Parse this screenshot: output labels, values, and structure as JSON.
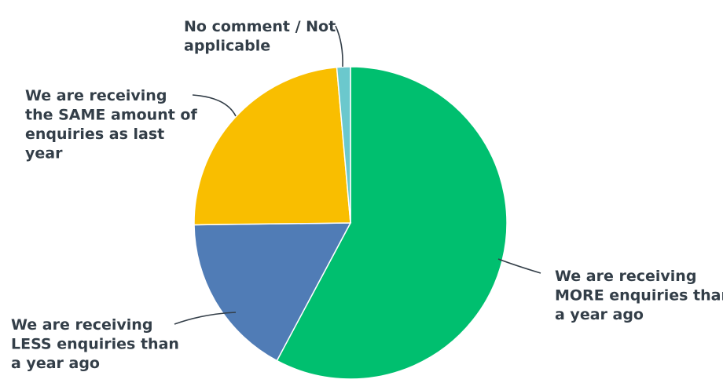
{
  "chart_data": {
    "type": "pie",
    "start_angle_deg": 0,
    "direction": "clockwise",
    "series": [
      {
        "categories": [
          "We are receiving MORE enquiries than a year ago",
          "We are receiving LESS enquiries than a year ago",
          "We are receiving the SAME amount of enquiries as last year",
          "No comment / Not applicable"
        ],
        "values": [
          57.8,
          17.0,
          23.8,
          1.4
        ],
        "unit": "%",
        "colors": [
          "#00bf6f",
          "#507cb6",
          "#f9be00",
          "#6bc8cd"
        ]
      }
    ],
    "slice_labels": [
      [
        "We are receiving",
        "MORE enquiries than",
        "a year ago"
      ],
      [
        "We are receiving",
        "LESS enquiries than",
        "a year ago"
      ],
      [
        "We are receiving",
        "the SAME amount of",
        "enquiries as last",
        "year"
      ],
      [
        "No comment / Not",
        "applicable"
      ]
    ],
    "legend": "none",
    "data_labels": "outside with leader lines"
  },
  "style": {
    "label_color": "#333e48",
    "leader_color": "#333e48",
    "background": "#ffffff"
  }
}
